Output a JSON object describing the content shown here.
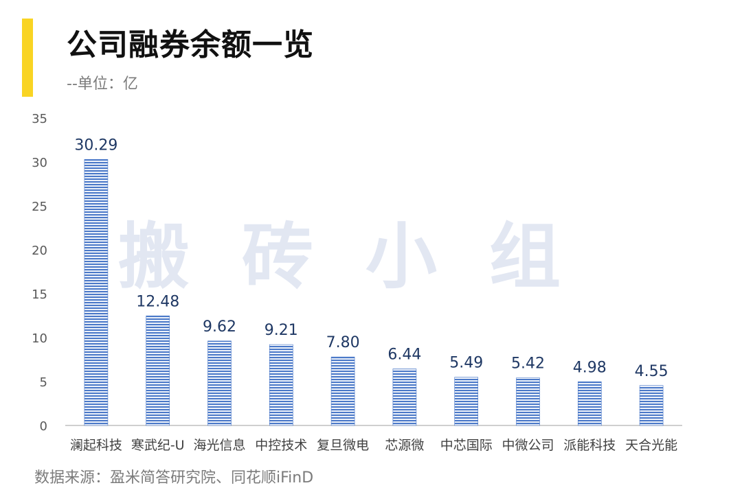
{
  "title": "公司融券余额一览",
  "subtitle": "--单位：亿",
  "source": "数据来源：盈米简答研究院、同花顺iFinD",
  "watermark": "搬砖小组",
  "colors": {
    "accent": "#f9d423",
    "bar": "#4a78c8",
    "bar_light": "#ffffff",
    "label": "#1f3864"
  },
  "chart_data": {
    "type": "bar",
    "categories": [
      "澜起科技",
      "寒武纪-U",
      "海光信息",
      "中控技术",
      "复旦微电",
      "芯源微",
      "中芯国际",
      "中微公司",
      "派能科技",
      "天合光能"
    ],
    "values": [
      30.29,
      12.48,
      9.62,
      9.21,
      7.8,
      6.44,
      5.49,
      5.42,
      4.98,
      4.55
    ],
    "value_labels": [
      "30.29",
      "12.48",
      "9.62",
      "9.21",
      "7.80",
      "6.44",
      "5.49",
      "5.42",
      "4.98",
      "4.55"
    ],
    "yticks": [
      0,
      5,
      10,
      15,
      20,
      25,
      30,
      35
    ],
    "ylim": [
      0,
      35
    ],
    "xlabel": "",
    "ylabel": "",
    "grid": false,
    "legend": "none"
  }
}
